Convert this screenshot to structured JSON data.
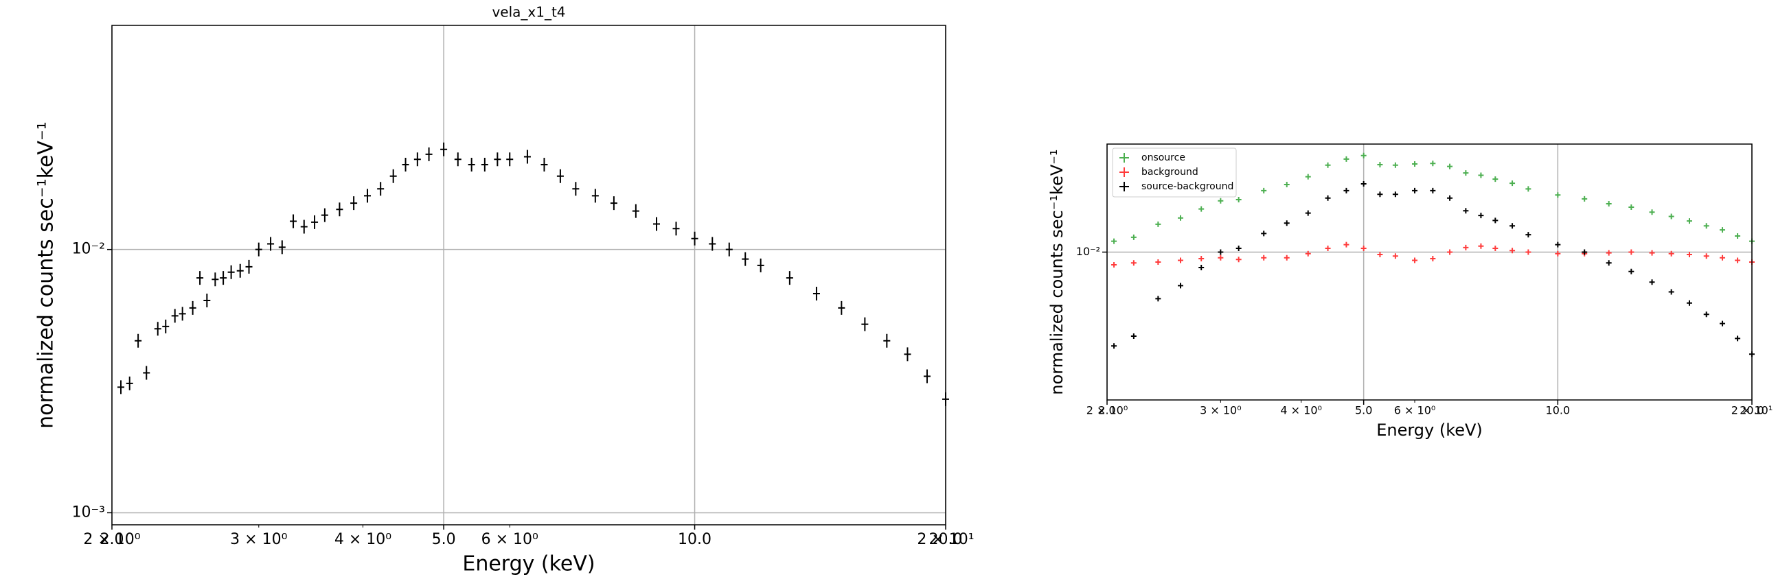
{
  "chart_data": [
    {
      "type": "scatter",
      "title": "vela_x1_t4",
      "xlabel": "Energy (keV)",
      "ylabel": "normalized counts sec⁻¹keV⁻¹",
      "xscale": "log",
      "yscale": "log",
      "grid": true,
      "xlim": [
        2,
        20
      ],
      "ylim": [
        0.0009,
        0.071
      ],
      "xticks": [
        {
          "value": 2,
          "label": "2.0"
        },
        {
          "value": 5,
          "label": "5.0"
        },
        {
          "value": 10,
          "label": "10.0"
        },
        {
          "value": 20,
          "label": "20.0"
        }
      ],
      "xminorticks": [
        {
          "value": 2,
          "label": "2 × 10⁰"
        },
        {
          "value": 3,
          "label": "3 × 10⁰"
        },
        {
          "value": 4,
          "label": "4 × 10⁰"
        },
        {
          "value": 6,
          "label": "6 × 10⁰"
        },
        {
          "value": 20,
          "label": "2 × 10¹"
        }
      ],
      "yticks": [
        {
          "value": 0.001,
          "label": "10⁻³"
        },
        {
          "value": 0.01,
          "label": "10⁻²"
        }
      ],
      "x": [
        2.05,
        2.1,
        2.15,
        2.2,
        2.27,
        2.32,
        2.38,
        2.43,
        2.5,
        2.55,
        2.6,
        2.66,
        2.72,
        2.78,
        2.85,
        2.92,
        3.0,
        3.1,
        3.2,
        3.3,
        3.4,
        3.5,
        3.6,
        3.75,
        3.9,
        4.05,
        4.2,
        4.35,
        4.5,
        4.65,
        4.8,
        5.0,
        5.2,
        5.4,
        5.6,
        5.8,
        6.0,
        6.3,
        6.6,
        6.9,
        7.2,
        7.6,
        8.0,
        8.5,
        9.0,
        9.5,
        10.0,
        10.5,
        11,
        11.5,
        12,
        13,
        14,
        15,
        16,
        17,
        18,
        19,
        20
      ],
      "series": [
        {
          "color": "#000000",
          "values": [
            0.003,
            0.0031,
            0.0045,
            0.0034,
            0.005,
            0.0051,
            0.0056,
            0.0057,
            0.006,
            0.0078,
            0.0064,
            0.0077,
            0.0078,
            0.0082,
            0.0083,
            0.0086,
            0.01,
            0.0105,
            0.0102,
            0.0128,
            0.0122,
            0.0127,
            0.0135,
            0.0142,
            0.015,
            0.016,
            0.017,
            0.019,
            0.021,
            0.022,
            0.023,
            0.024,
            0.022,
            0.021,
            0.021,
            0.022,
            0.022,
            0.0225,
            0.021,
            0.019,
            0.017,
            0.016,
            0.015,
            0.014,
            0.0125,
            0.012,
            0.011,
            0.0105,
            0.01,
            0.0092,
            0.0087,
            0.0078,
            0.0068,
            0.006,
            0.0052,
            0.0045,
            0.004,
            0.0033,
            0.0027
          ]
        }
      ]
    },
    {
      "type": "scatter",
      "xlabel": "Energy (keV)",
      "ylabel": "normalized counts sec⁻¹keV⁻¹",
      "xscale": "log",
      "yscale": "log",
      "grid": true,
      "legend": "upper left",
      "xlim": [
        2,
        20
      ],
      "ylim": [
        0.0015,
        0.04
      ],
      "xticks": [
        {
          "value": 2,
          "label": "2.0"
        },
        {
          "value": 5,
          "label": "5.0"
        },
        {
          "value": 10,
          "label": "10.0"
        },
        {
          "value": 20,
          "label": "20.0"
        }
      ],
      "xminorticks": [
        {
          "value": 2,
          "label": "2 × 10⁰"
        },
        {
          "value": 3,
          "label": "3 × 10⁰"
        },
        {
          "value": 4,
          "label": "4 × 10⁰"
        },
        {
          "value": 6,
          "label": "6 × 10⁰"
        },
        {
          "value": 20,
          "label": "2 × 10¹"
        }
      ],
      "yticks": [
        {
          "value": 0.01,
          "label": "10⁻²"
        }
      ],
      "x": [
        2.05,
        2.2,
        2.4,
        2.6,
        2.8,
        3.0,
        3.2,
        3.5,
        3.8,
        4.1,
        4.4,
        4.7,
        5.0,
        5.3,
        5.6,
        6.0,
        6.4,
        6.8,
        7.2,
        7.6,
        8.0,
        8.5,
        9,
        10,
        11,
        12,
        13,
        14,
        15,
        16,
        17,
        18,
        19,
        20
      ],
      "series": [
        {
          "name": "onsource",
          "color": "#4caf50",
          "values": [
            0.0115,
            0.0121,
            0.0143,
            0.0155,
            0.0174,
            0.0193,
            0.0196,
            0.022,
            0.0238,
            0.0263,
            0.0305,
            0.033,
            0.0345,
            0.0307,
            0.0305,
            0.031,
            0.0312,
            0.03,
            0.0276,
            0.0268,
            0.0255,
            0.0242,
            0.0225,
            0.0208,
            0.0198,
            0.0186,
            0.0178,
            0.0167,
            0.0158,
            0.0149,
            0.014,
            0.0133,
            0.0123,
            0.0115
          ]
        },
        {
          "name": "background",
          "color": "#ff3b3b",
          "values": [
            0.0085,
            0.0087,
            0.0088,
            0.009,
            0.0092,
            0.0093,
            0.0091,
            0.0093,
            0.0093,
            0.0098,
            0.0105,
            0.011,
            0.0105,
            0.0097,
            0.0095,
            0.009,
            0.0092,
            0.01,
            0.0106,
            0.0108,
            0.0105,
            0.0102,
            0.01,
            0.0098,
            0.0098,
            0.0099,
            0.01,
            0.0099,
            0.0098,
            0.0097,
            0.0095,
            0.0093,
            0.009,
            0.0088
          ]
        },
        {
          "name": "source-background",
          "color": "#000000",
          "values": [
            0.003,
            0.0034,
            0.0055,
            0.0065,
            0.0082,
            0.01,
            0.0105,
            0.0127,
            0.0145,
            0.0165,
            0.02,
            0.022,
            0.024,
            0.021,
            0.021,
            0.022,
            0.022,
            0.02,
            0.017,
            0.016,
            0.015,
            0.014,
            0.0125,
            0.011,
            0.01,
            0.0087,
            0.0078,
            0.0068,
            0.006,
            0.0052,
            0.0045,
            0.004,
            0.0033,
            0.0027
          ]
        }
      ]
    }
  ]
}
